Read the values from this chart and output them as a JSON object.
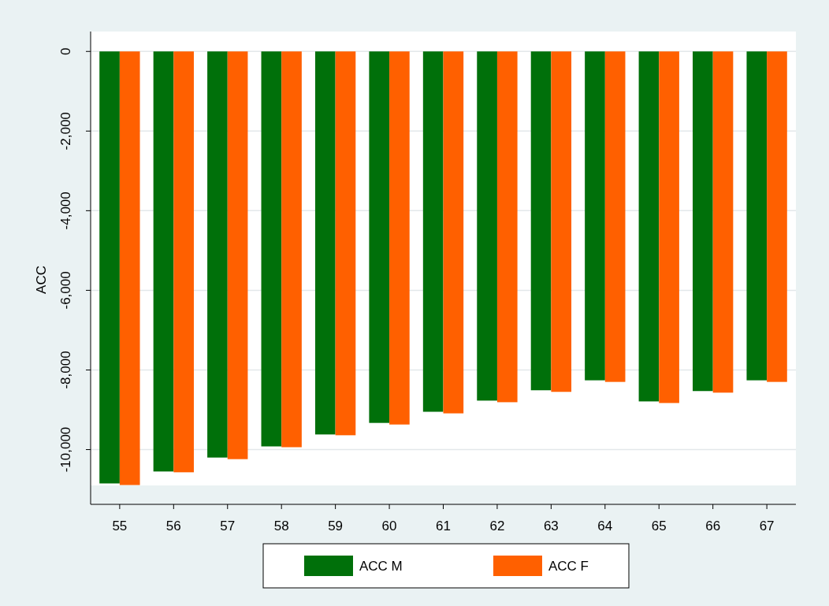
{
  "chart_data": {
    "type": "bar",
    "ylabel": "ACC",
    "categories": [
      "55",
      "56",
      "57",
      "58",
      "59",
      "60",
      "61",
      "62",
      "63",
      "64",
      "65",
      "66",
      "67"
    ],
    "series": [
      {
        "name": "ACC M",
        "color": "#00700a",
        "values": [
          -10850,
          -10550,
          -10200,
          -9920,
          -9620,
          -9330,
          -9050,
          -8770,
          -8510,
          -8260,
          -8790,
          -8530,
          -8260
        ]
      },
      {
        "name": "ACC F",
        "color": "#ff6000",
        "values": [
          -10890,
          -10570,
          -10240,
          -9940,
          -9640,
          -9370,
          -9090,
          -8810,
          -8550,
          -8300,
          -8830,
          -8570,
          -8300
        ]
      }
    ],
    "ylim": [
      -10900,
      500
    ],
    "yticks": [
      {
        "value": 0,
        "label": "0"
      },
      {
        "value": -2000,
        "label": "-2,000"
      },
      {
        "value": -4000,
        "label": "-4,000"
      },
      {
        "value": -6000,
        "label": "-6,000"
      },
      {
        "value": -8000,
        "label": "-8,000"
      },
      {
        "value": -10000,
        "label": "-10,000"
      }
    ],
    "grid": "y",
    "legend": "bottom"
  }
}
